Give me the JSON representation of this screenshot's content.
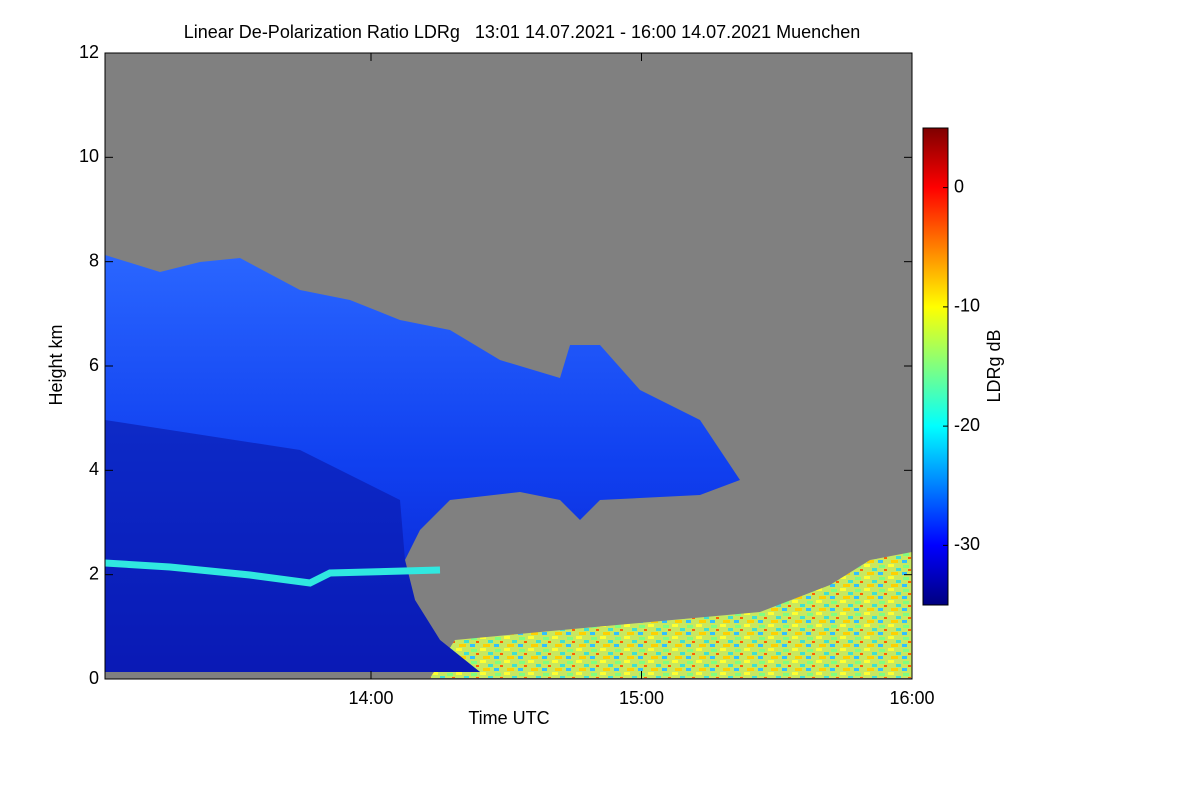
{
  "chart_data": {
    "type": "heatmap",
    "title": "Linear De-Polarization Ratio LDRg   13:01 14.07.2021 - 16:00 14.07.2021 Muenchen",
    "x_label": "Time UTC",
    "y_label": "Height km",
    "xlim": [
      13.0167,
      16
    ],
    "xticks": [
      {
        "value": 14,
        "label": "14:00"
      },
      {
        "value": 15,
        "label": "15:00"
      },
      {
        "value": 16,
        "label": "16:00"
      }
    ],
    "ylim": [
      0,
      12
    ],
    "yticks": [
      0,
      2,
      4,
      6,
      8,
      10,
      12
    ],
    "colorbar": {
      "label": "LDRg dB",
      "lim": [
        -35,
        5
      ],
      "ticks": [
        0,
        -10,
        -20,
        -30
      ],
      "colors": [
        "#00007f",
        "#0000ff",
        "#0080ff",
        "#00ffff",
        "#80ff80",
        "#ffff00",
        "#ff8000",
        "#ff0000",
        "#7f0000"
      ]
    }
  }
}
